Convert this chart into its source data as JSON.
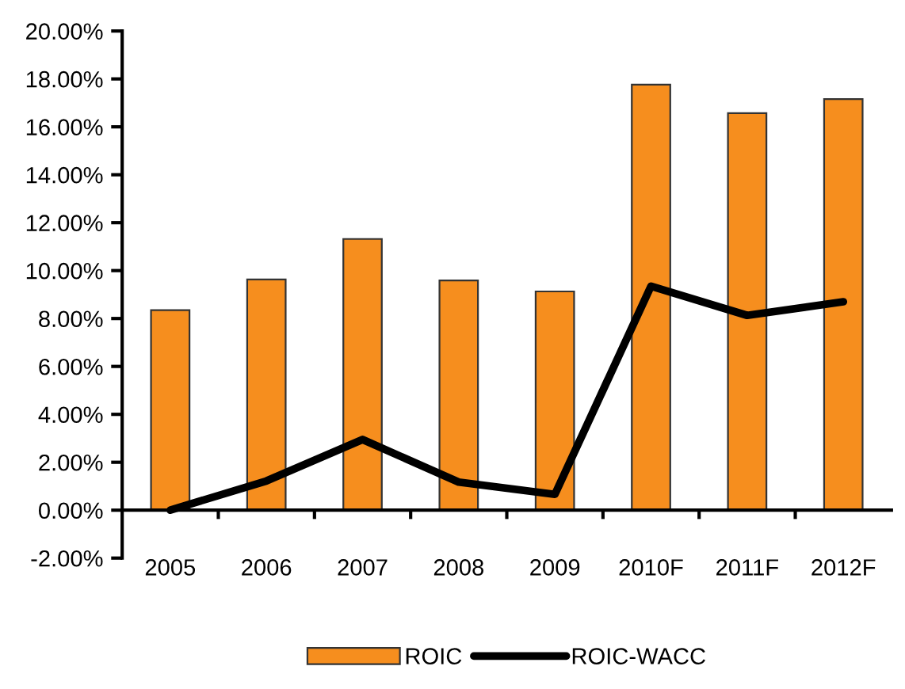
{
  "chart_data": {
    "type": "bar",
    "categories": [
      "2005",
      "2006",
      "2007",
      "2008",
      "2009",
      "2010F",
      "2011F",
      "2012F"
    ],
    "series": [
      {
        "name": "ROIC",
        "color": "#f68e1e",
        "values": [
          8.35,
          9.63,
          11.32,
          9.59,
          9.13,
          17.76,
          16.57,
          17.16
        ]
      },
      {
        "name": "ROIC-WACC",
        "type": "line",
        "color": "#000000",
        "values": [
          0.0,
          1.22,
          2.95,
          1.17,
          0.66,
          9.35,
          8.13,
          8.7
        ]
      }
    ],
    "ylim": [
      -2,
      20
    ],
    "yticks": [
      {
        "value": -2,
        "label": "-2.00%"
      },
      {
        "value": 0,
        "label": "0.00%"
      },
      {
        "value": 2,
        "label": "2.00%"
      },
      {
        "value": 4,
        "label": "4.00%"
      },
      {
        "value": 6,
        "label": "6.00%"
      },
      {
        "value": 8,
        "label": "8.00%"
      },
      {
        "value": 10,
        "label": "10.00%"
      },
      {
        "value": 12,
        "label": "12.00%"
      },
      {
        "value": 14,
        "label": "14.00%"
      },
      {
        "value": 16,
        "label": "16.00%"
      },
      {
        "value": 18,
        "label": "18.00%"
      },
      {
        "value": 20,
        "label": "20.00%"
      }
    ],
    "grid": false,
    "legend": "bottom",
    "marker": "none",
    "line_style": "solid"
  }
}
